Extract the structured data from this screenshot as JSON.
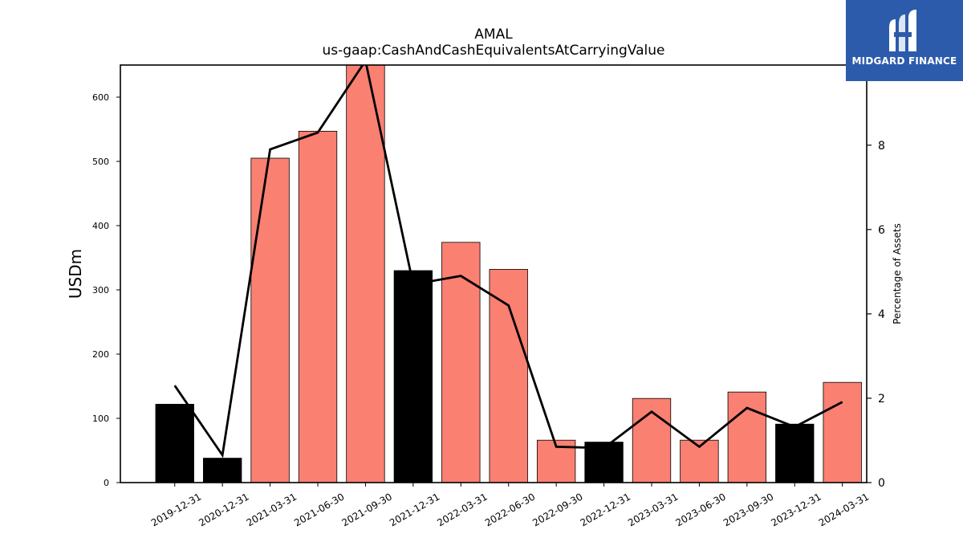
{
  "chart_data": {
    "type": "bar",
    "title": "AMAL",
    "subtitle": "us-gaap:CashAndCashEquivalentsAtCarryingValue",
    "ylabel": "USDm",
    "y2label": "Percentage of Assets",
    "ylim": [
      0,
      650
    ],
    "y2lim": [
      0,
      9.9
    ],
    "yticks": [
      0,
      100,
      200,
      300,
      400,
      500,
      600
    ],
    "y2ticks": [
      0,
      2,
      4,
      6,
      8
    ],
    "categories": [
      "2019-12-31",
      "2020-12-31",
      "2021-03-31",
      "2021-06-30",
      "2021-09-30",
      "2021-12-31",
      "2022-03-31",
      "2022-06-30",
      "2022-09-30",
      "2022-12-31",
      "2023-03-31",
      "2023-06-30",
      "2023-09-30",
      "2023-12-31",
      "2024-03-31"
    ],
    "series": [
      {
        "type": "bar",
        "values": [
          122,
          38,
          505,
          547,
          650,
          330,
          374,
          332,
          66,
          63,
          131,
          66,
          141,
          91,
          156
        ],
        "colors": [
          "#000000",
          "#000000",
          "#fa8072",
          "#fa8072",
          "#fa8072",
          "#000000",
          "#fa8072",
          "#fa8072",
          "#fa8072",
          "#000000",
          "#fa8072",
          "#fa8072",
          "#fa8072",
          "#000000",
          "#fa8072"
        ]
      },
      {
        "type": "line",
        "axis": "right",
        "color": "#000000",
        "values": [
          2.3,
          0.65,
          7.9,
          8.3,
          10.0,
          4.7,
          4.9,
          4.2,
          0.85,
          0.82,
          1.68,
          0.85,
          1.77,
          1.32,
          1.91
        ]
      }
    ],
    "grid": false
  },
  "logo": {
    "text": "MIDGARD FINANCE",
    "icon": "midgard-logo-icon",
    "background": "#2d5bab"
  }
}
